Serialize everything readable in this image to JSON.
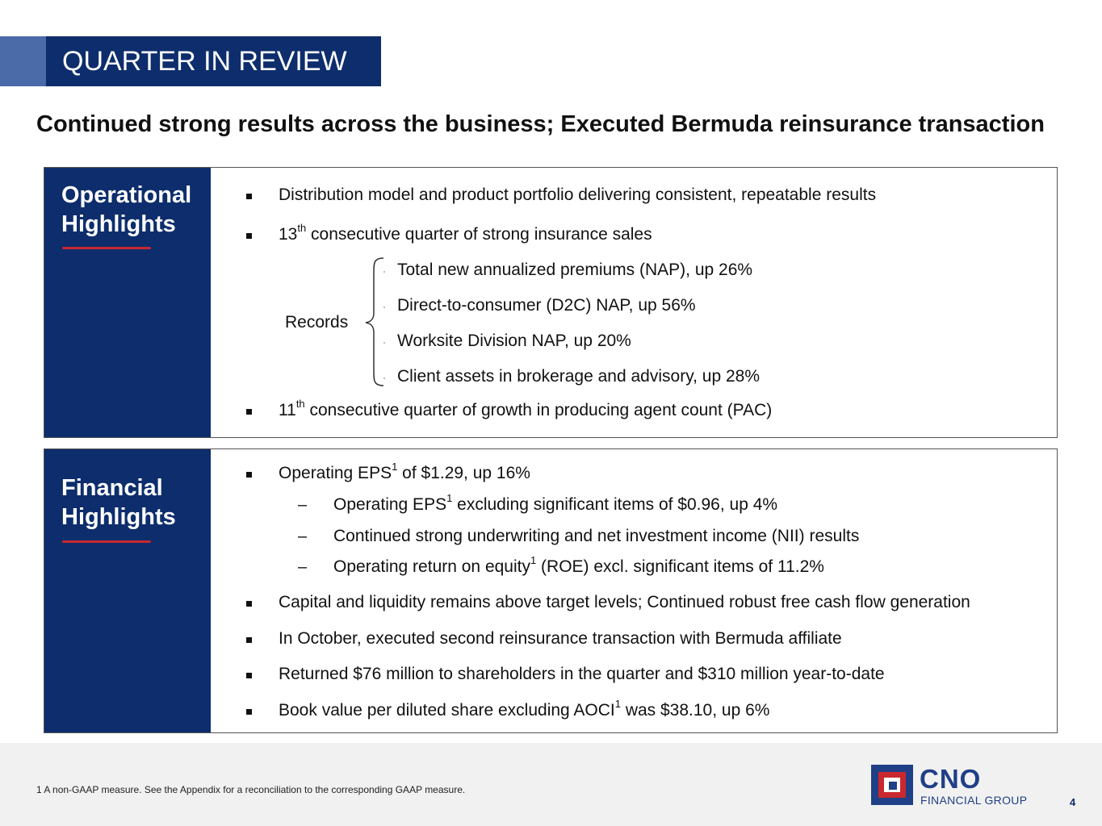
{
  "header": {
    "title": "QUARTER IN REVIEW",
    "subtitle": "Continued strong results across the business; Executed Bermuda reinsurance transaction"
  },
  "operational": {
    "heading_line1": "Operational",
    "heading_line2": "Highlights",
    "bullet1": "Distribution model and product portfolio delivering consistent, repeatable results",
    "bullet2_num": "13",
    "bullet2_sup": "th",
    "bullet2_rest": " consecutive quarter of strong insurance sales",
    "records_label": "Records",
    "records": [
      "Total new annualized premiums (NAP), up 26%",
      "Direct-to-consumer (D2C) NAP, up 56%",
      "Worksite Division NAP, up 20%",
      "Client assets in brokerage and advisory, up 28%"
    ],
    "bullet3_num": "11",
    "bullet3_sup": "th",
    "bullet3_rest": " consecutive quarter of growth in producing agent count (PAC)"
  },
  "financial": {
    "heading_line1": "Financial",
    "heading_line2": "Highlights",
    "eps_pre": "Operating EPS",
    "eps_sup": "1",
    "eps_post": " of $1.29, up 16%",
    "sub1_pre": "Operating EPS",
    "sub1_sup": "1",
    "sub1_post": " excluding significant items of $0.96, up 4%",
    "sub2": "Continued strong underwriting and net investment income (NII) results",
    "sub3_pre": "Operating return on equity",
    "sub3_sup": "1",
    "sub3_post": " (ROE) excl. significant items of 11.2%",
    "bullet_capital": "Capital and liquidity remains above target levels; Continued robust free cash flow generation",
    "bullet_october": "In October, executed second reinsurance transaction with Bermuda affiliate",
    "bullet_returned": "Returned $76 million to shareholders in the quarter and $310 million year-to-date",
    "book_pre": "Book value per diluted share excluding AOCI",
    "book_sup": "1",
    "book_post": " was $38.10, up 6%"
  },
  "footer": {
    "footnote": "1  A non-GAAP measure. See the Appendix for a reconciliation to the corresponding GAAP measure.",
    "page_number": "4",
    "logo_name": "CNO",
    "logo_sub": "FINANCIAL GROUP"
  },
  "colors": {
    "navy": "#0d2d6c",
    "accent_blue": "#4a6aa8",
    "red": "#c8282e",
    "footer_bg": "#f1f1f1"
  }
}
